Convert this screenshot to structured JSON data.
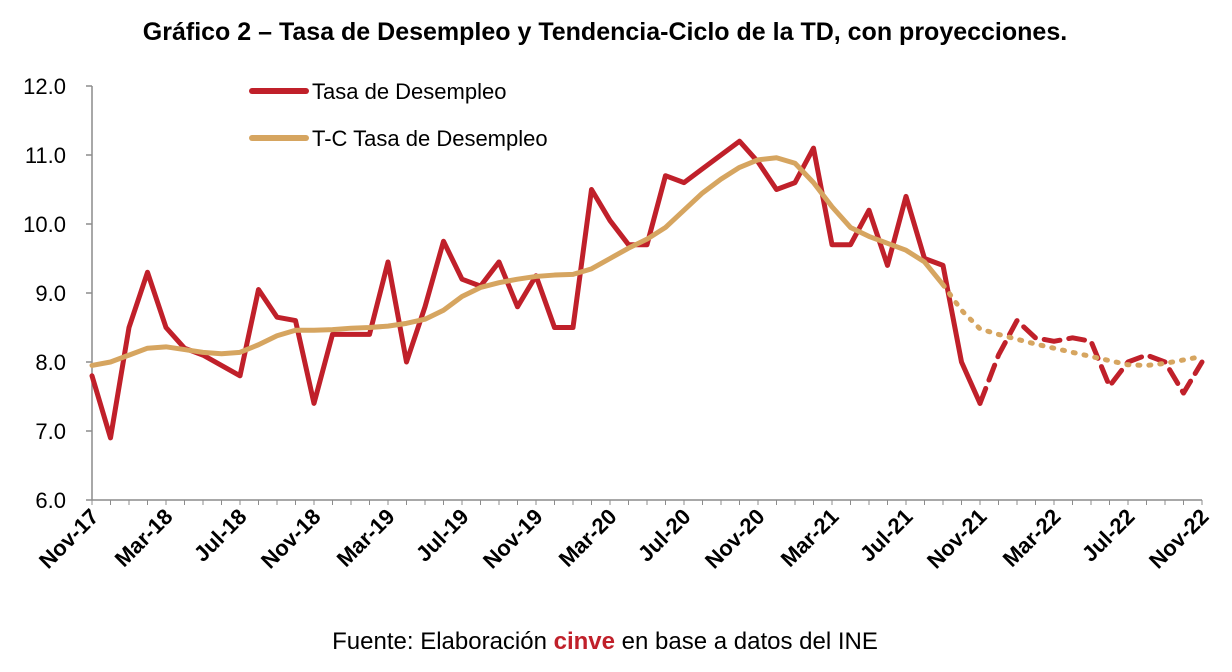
{
  "chart_data": {
    "type": "line",
    "title": "Gráfico 2 – Tasa de Desempleo y Tendencia-Ciclo de la TD, con proyecciones.",
    "source_prefix": "Fuente: Elaboración ",
    "source_brand": "cinve",
    "source_suffix": " en base a datos del INE",
    "ylim": [
      6.0,
      12.0
    ],
    "y_ticks": [
      "6.0",
      "7.0",
      "8.0",
      "9.0",
      "10.0",
      "11.0",
      "12.0"
    ],
    "x_tick_labels": [
      "Nov-17",
      "Mar-18",
      "Jul-18",
      "Nov-18",
      "Mar-19",
      "Jul-19",
      "Nov-19",
      "Mar-20",
      "Jul-20",
      "Nov-20",
      "Mar-21",
      "Jul-21",
      "Nov-21",
      "Mar-22",
      "Jul-22",
      "Nov-22"
    ],
    "x": [
      "Nov-17",
      "Dic-17",
      "Ene-18",
      "Feb-18",
      "Mar-18",
      "Abr-18",
      "May-18",
      "Jun-18",
      "Jul-18",
      "Ago-18",
      "Sep-18",
      "Oct-18",
      "Nov-18",
      "Dic-18",
      "Ene-19",
      "Feb-19",
      "Mar-19",
      "Abr-19",
      "May-19",
      "Jun-19",
      "Jul-19",
      "Ago-19",
      "Sep-19",
      "Oct-19",
      "Nov-19",
      "Dic-19",
      "Ene-20",
      "Feb-20",
      "Mar-20",
      "Abr-20",
      "May-20",
      "Jun-20",
      "Jul-20",
      "Ago-20",
      "Sep-20",
      "Oct-20",
      "Nov-20",
      "Dic-20",
      "Ene-21",
      "Feb-21",
      "Mar-21",
      "Abr-21",
      "May-21",
      "Jun-21",
      "Jul-21",
      "Ago-21",
      "Sep-21",
      "Oct-21",
      "Nov-21",
      "Dic-21",
      "Ene-22",
      "Feb-22",
      "Mar-22",
      "Abr-22",
      "May-22",
      "Jun-22",
      "Jul-22",
      "Ago-22",
      "Sep-22",
      "Oct-22",
      "Nov-22"
    ],
    "legend_placement": "top-left inside plot",
    "grid": false,
    "series": [
      {
        "name": "Tasa de Desempleo",
        "color": "#c0202a",
        "style_observed": "solid",
        "style_projection": "dashed",
        "observed_count": 49,
        "values": [
          7.8,
          6.9,
          8.5,
          9.3,
          8.5,
          8.2,
          8.1,
          7.95,
          7.8,
          9.05,
          8.65,
          8.6,
          7.4,
          8.4,
          8.4,
          8.4,
          9.45,
          8.0,
          8.8,
          9.75,
          9.2,
          9.1,
          9.45,
          8.8,
          9.25,
          8.5,
          8.5,
          10.5,
          10.05,
          9.7,
          9.7,
          10.7,
          10.6,
          10.8,
          11.0,
          11.2,
          10.9,
          10.5,
          10.6,
          11.1,
          9.7,
          9.7,
          10.2,
          9.4,
          10.4,
          9.5,
          9.4,
          8.0,
          7.4,
          8.1,
          8.6,
          8.35,
          8.3,
          8.35,
          8.3,
          7.65,
          8.0,
          8.1,
          8.0,
          7.55,
          8.0
        ]
      },
      {
        "name": "T-C Tasa de Desempleo",
        "color": "#d6a560",
        "style_observed": "solid",
        "style_projection": "dotted",
        "observed_count": 47,
        "values": [
          7.95,
          8.0,
          8.1,
          8.2,
          8.22,
          8.18,
          8.14,
          8.12,
          8.14,
          8.25,
          8.38,
          8.46,
          8.46,
          8.47,
          8.49,
          8.5,
          8.52,
          8.56,
          8.62,
          8.75,
          8.95,
          9.08,
          9.15,
          9.2,
          9.24,
          9.26,
          9.27,
          9.35,
          9.5,
          9.65,
          9.78,
          9.95,
          10.2,
          10.45,
          10.65,
          10.82,
          10.93,
          10.96,
          10.88,
          10.6,
          10.25,
          9.95,
          9.82,
          9.72,
          9.62,
          9.45,
          9.12,
          8.75,
          8.48,
          8.4,
          8.33,
          8.26,
          8.2,
          8.14,
          8.08,
          8.02,
          7.96,
          7.95,
          7.98,
          8.03,
          8.08
        ]
      }
    ]
  }
}
